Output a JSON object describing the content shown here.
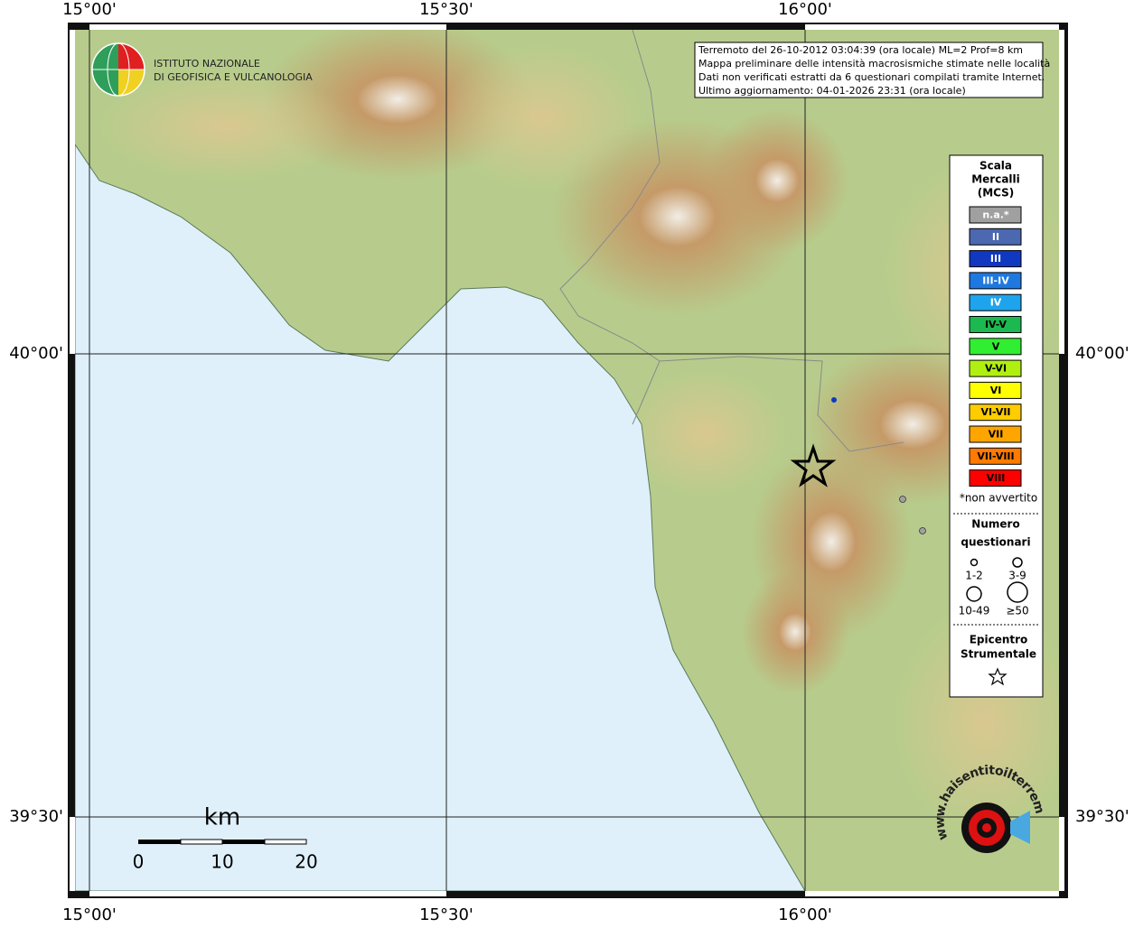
{
  "info_box": {
    "lines": [
      "Terremoto del 26-10-2012 03:04:39 (ora locale) ML=2 Prof=8 km",
      "Mappa preliminare delle intensità macrosismiche stimate nelle località",
      "Dati non verificati estratti da 6 questionari compilati tramite Internet.",
      "Ultimo aggiornamento: 04-01-2026 23:31 (ora locale)"
    ]
  },
  "logo": {
    "lines": [
      "ISTITUTO NAZIONALE",
      "DI GEOFISICA E VULCANOLOGIA"
    ]
  },
  "longitude_labels": [
    "15°00'",
    "15°30'",
    "16°00'"
  ],
  "latitude_labels": [
    "40°00'",
    "39°30'"
  ],
  "legend": {
    "title": [
      "Scala",
      "Mercalli",
      "(MCS)"
    ],
    "items": [
      {
        "label": "n.a.*",
        "color": "#a0a0a0",
        "text_color": "#ffffff"
      },
      {
        "label": "II",
        "color": "#4b68b0",
        "text_color": "#ffffff"
      },
      {
        "label": "III",
        "color": "#1038c0",
        "text_color": "#ffffff"
      },
      {
        "label": "III-IV",
        "color": "#1e78e0",
        "text_color": "#ffffff"
      },
      {
        "label": "IV",
        "color": "#1ea4ec",
        "text_color": "#ffffff"
      },
      {
        "label": "IV-V",
        "color": "#1cb850",
        "text_color": "#000000"
      },
      {
        "label": "V",
        "color": "#30ee30",
        "text_color": "#000000"
      },
      {
        "label": "V-VI",
        "color": "#b0f010",
        "text_color": "#000000"
      },
      {
        "label": "VI",
        "color": "#ffff00",
        "text_color": "#000000"
      },
      {
        "label": "VI-VII",
        "color": "#ffcc00",
        "text_color": "#000000"
      },
      {
        "label": "VII",
        "color": "#ffa500",
        "text_color": "#000000"
      },
      {
        "label": "VII-VIII",
        "color": "#ff7a00",
        "text_color": "#000000"
      },
      {
        "label": "VIII",
        "color": "#ff0000",
        "text_color": "#000000"
      }
    ],
    "note": "*non avvertito",
    "size_title": [
      "Numero",
      "questionari"
    ],
    "sizes": [
      "1-2",
      "3-9",
      "10-49",
      "≥50"
    ],
    "epicenter_title": [
      "Epicentro",
      "Strumentale"
    ]
  },
  "scale_bar": {
    "unit": "km",
    "ticks": [
      "0",
      "10",
      "20"
    ]
  },
  "watermark": "www.haisentitoilterremoto.it"
}
